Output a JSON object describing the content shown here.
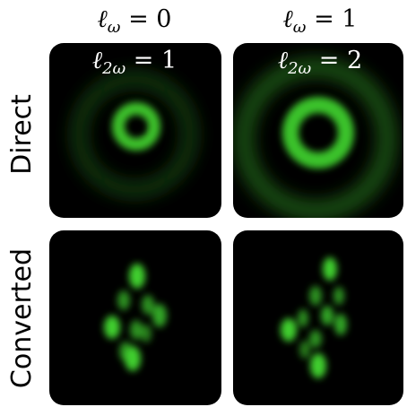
{
  "columns": [
    {
      "top": {
        "base": "ℓ",
        "sub": "ω",
        "rest": " = 0"
      },
      "bottom": {
        "base": "ℓ",
        "sub": "2ω",
        "rest": " = 1"
      }
    },
    {
      "top": {
        "base": "ℓ",
        "sub": "ω",
        "rest": " = 1"
      },
      "bottom": {
        "base": "ℓ",
        "sub": "2ω",
        "rest": " = 2"
      }
    }
  ],
  "rows": [
    "Direct",
    "Converted"
  ]
}
